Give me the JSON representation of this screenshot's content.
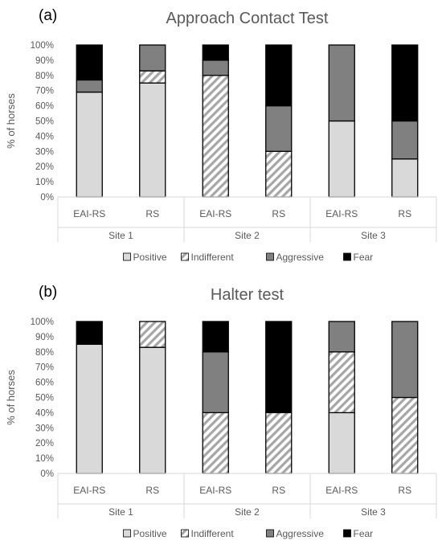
{
  "chart_data": [
    {
      "type": "bar",
      "stacked": true,
      "panel_label": "(a)",
      "title": "Approach Contact Test",
      "ylabel": "% of horses",
      "ylim": [
        0,
        100
      ],
      "yticks": [
        "0%",
        "10%",
        "20%",
        "30%",
        "40%",
        "50%",
        "60%",
        "70%",
        "80%",
        "90%",
        "100%"
      ],
      "categories": [
        "EAI-RS",
        "RS",
        "EAI-RS",
        "RS",
        "EAI-RS",
        "RS"
      ],
      "groups": [
        "Site 1",
        "Site 2",
        "Site 3"
      ],
      "legend_position": "bottom",
      "grid": false,
      "series": [
        {
          "name": "Positive",
          "color": "#d9d9d9",
          "pattern": "solid",
          "values": [
            69,
            75,
            0,
            0,
            50,
            25
          ]
        },
        {
          "name": "Indifferent",
          "color": "#a6a6a6",
          "pattern": "diagonal-hatch",
          "values": [
            0,
            8,
            80,
            30,
            0,
            0
          ]
        },
        {
          "name": "Aggressive",
          "color": "#808080",
          "pattern": "solid",
          "values": [
            8,
            17,
            10,
            30,
            50,
            25
          ]
        },
        {
          "name": "Fear",
          "color": "#000000",
          "pattern": "solid",
          "values": [
            23,
            0,
            10,
            40,
            0,
            50
          ]
        }
      ]
    },
    {
      "type": "bar",
      "stacked": true,
      "panel_label": "(b)",
      "title": "Halter test",
      "ylabel": "% of horses",
      "ylim": [
        0,
        100
      ],
      "yticks": [
        "0%",
        "10%",
        "20%",
        "30%",
        "40%",
        "50%",
        "60%",
        "70%",
        "80%",
        "90%",
        "100%"
      ],
      "categories": [
        "EAI-RS",
        "RS",
        "EAI-RS",
        "RS",
        "EAI-RS",
        "RS"
      ],
      "groups": [
        "Site 1",
        "Site 2",
        "Site 3"
      ],
      "legend_position": "bottom",
      "grid": false,
      "series": [
        {
          "name": "Positive",
          "color": "#d9d9d9",
          "pattern": "solid",
          "values": [
            85,
            83,
            0,
            0,
            40,
            0
          ]
        },
        {
          "name": "Indifferent",
          "color": "#a6a6a6",
          "pattern": "diagonal-hatch",
          "values": [
            0,
            17,
            40,
            40,
            40,
            50
          ]
        },
        {
          "name": "Aggressive",
          "color": "#808080",
          "pattern": "solid",
          "values": [
            0,
            0,
            40,
            0,
            20,
            50
          ]
        },
        {
          "name": "Fear",
          "color": "#000000",
          "pattern": "solid",
          "values": [
            15,
            0,
            20,
            60,
            0,
            0
          ]
        }
      ]
    }
  ]
}
